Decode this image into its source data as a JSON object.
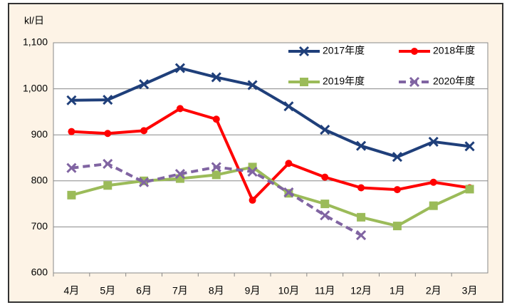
{
  "chart_data": {
    "type": "line",
    "y_label": "kl/日",
    "categories": [
      "4月",
      "5月",
      "6月",
      "7月",
      "8月",
      "9月",
      "10月",
      "11月",
      "12月",
      "1月",
      "2月",
      "3月"
    ],
    "series": [
      {
        "name": "2017年度",
        "color": "#1f3f7a",
        "marker": "x",
        "dashed": false,
        "values": [
          975,
          976,
          1010,
          1045,
          1025,
          1008,
          962,
          911,
          876,
          852,
          885,
          875
        ]
      },
      {
        "name": "2018年度",
        "color": "#ff0000",
        "marker": "circle",
        "dashed": false,
        "values": [
          907,
          903,
          909,
          957,
          934,
          758,
          838,
          808,
          785,
          781,
          797,
          785
        ]
      },
      {
        "name": "2019年度",
        "color": "#9bbb59",
        "marker": "square",
        "dashed": false,
        "values": [
          769,
          790,
          800,
          805,
          813,
          830,
          773,
          750,
          721,
          702,
          746,
          782
        ]
      },
      {
        "name": "2020年度",
        "color": "#8064a2",
        "marker": "x",
        "dashed": true,
        "values": [
          828,
          837,
          797,
          815,
          830,
          820,
          775,
          725,
          682,
          null,
          null,
          null
        ]
      }
    ],
    "ylim": [
      600,
      1100
    ],
    "yticks": [
      600,
      700,
      800,
      900,
      {
        "value": 1000,
        "label": "1,000"
      },
      {
        "value": 1100,
        "label": "1,100"
      }
    ],
    "grid": true
  }
}
